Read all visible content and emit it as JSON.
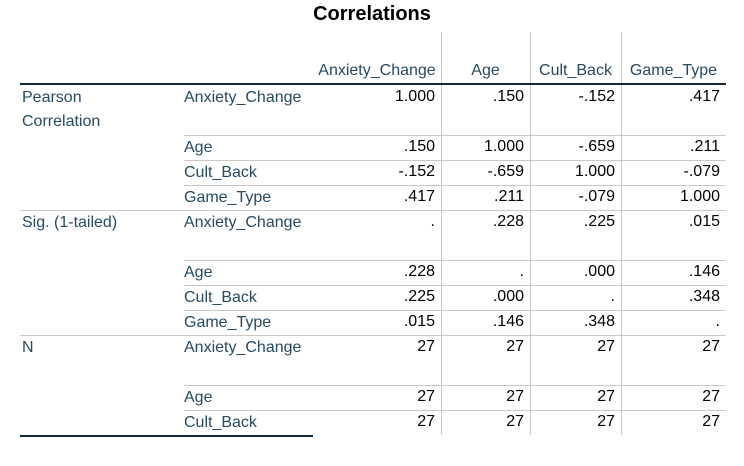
{
  "title": "Correlations",
  "columns": [
    "Anxiety_Change",
    "Age",
    "Cult_Back",
    "Game_Type"
  ],
  "sections": [
    {
      "label": "Pearson Correlation",
      "rows": [
        {
          "var": "Anxiety_Change",
          "values": [
            "1.000",
            ".150",
            "-.152",
            ".417"
          ]
        },
        {
          "var": "Age",
          "values": [
            ".150",
            "1.000",
            "-.659",
            ".211"
          ]
        },
        {
          "var": "Cult_Back",
          "values": [
            "-.152",
            "-.659",
            "1.000",
            "-.079"
          ]
        },
        {
          "var": "Game_Type",
          "values": [
            ".417",
            ".211",
            "-.079",
            "1.000"
          ]
        }
      ]
    },
    {
      "label": "Sig. (1-tailed)",
      "rows": [
        {
          "var": "Anxiety_Change",
          "values": [
            ".",
            ".228",
            ".225",
            ".015"
          ]
        },
        {
          "var": "Age",
          "values": [
            ".228",
            ".",
            ".000",
            ".146"
          ]
        },
        {
          "var": "Cult_Back",
          "values": [
            ".225",
            ".000",
            ".",
            ".348"
          ]
        },
        {
          "var": "Game_Type",
          "values": [
            ".015",
            ".146",
            ".348",
            "."
          ]
        }
      ]
    },
    {
      "label": "N",
      "rows": [
        {
          "var": "Anxiety_Change",
          "values": [
            "27",
            "27",
            "27",
            "27"
          ]
        },
        {
          "var": "Age",
          "values": [
            "27",
            "27",
            "27",
            "27"
          ]
        },
        {
          "var": "Cult_Back",
          "values": [
            "27",
            "27",
            "27",
            "27"
          ]
        }
      ]
    }
  ]
}
